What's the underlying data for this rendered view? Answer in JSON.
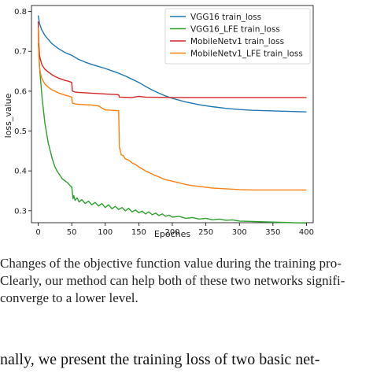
{
  "chart_data": {
    "type": "line",
    "xlabel": "Epoches",
    "ylabel": "loss_value",
    "xlim": [
      -10,
      410
    ],
    "ylim": [
      0.27,
      0.815
    ],
    "xticks": [
      0,
      50,
      100,
      150,
      200,
      250,
      300,
      350,
      400
    ],
    "yticks": [
      0.3,
      0.4,
      0.5,
      0.6,
      0.7,
      0.8
    ],
    "legend_position": "top-right",
    "grid": false,
    "series": [
      {
        "name": "VGG16 train_loss",
        "color": "#1f77b4",
        "points": [
          [
            0,
            0.79
          ],
          [
            2,
            0.77
          ],
          [
            5,
            0.755
          ],
          [
            10,
            0.74
          ],
          [
            15,
            0.73
          ],
          [
            20,
            0.72
          ],
          [
            30,
            0.707
          ],
          [
            40,
            0.697
          ],
          [
            50,
            0.69
          ],
          [
            60,
            0.68
          ],
          [
            70,
            0.673
          ],
          [
            80,
            0.667
          ],
          [
            90,
            0.662
          ],
          [
            100,
            0.657
          ],
          [
            110,
            0.651
          ],
          [
            120,
            0.645
          ],
          [
            130,
            0.638
          ],
          [
            140,
            0.63
          ],
          [
            150,
            0.622
          ],
          [
            160,
            0.612
          ],
          [
            170,
            0.603
          ],
          [
            180,
            0.595
          ],
          [
            190,
            0.588
          ],
          [
            200,
            0.582
          ],
          [
            220,
            0.573
          ],
          [
            240,
            0.566
          ],
          [
            260,
            0.561
          ],
          [
            280,
            0.557
          ],
          [
            300,
            0.554
          ],
          [
            320,
            0.552
          ],
          [
            340,
            0.551
          ],
          [
            360,
            0.55
          ],
          [
            380,
            0.549
          ],
          [
            400,
            0.548
          ]
        ]
      },
      {
        "name": "VGG16_LFE train_loss",
        "color": "#2ca02c",
        "points": [
          [
            0,
            0.72
          ],
          [
            1,
            0.7
          ],
          [
            2,
            0.66
          ],
          [
            4,
            0.62
          ],
          [
            6,
            0.58
          ],
          [
            8,
            0.55
          ],
          [
            10,
            0.52
          ],
          [
            12,
            0.5
          ],
          [
            15,
            0.47
          ],
          [
            18,
            0.45
          ],
          [
            21,
            0.43
          ],
          [
            25,
            0.41
          ],
          [
            28,
            0.4
          ],
          [
            32,
            0.39
          ],
          [
            36,
            0.38
          ],
          [
            40,
            0.375
          ],
          [
            44,
            0.37
          ],
          [
            48,
            0.362
          ],
          [
            50,
            0.36
          ],
          [
            51,
            0.345
          ],
          [
            52,
            0.33
          ],
          [
            53,
            0.338
          ],
          [
            55,
            0.326
          ],
          [
            58,
            0.332
          ],
          [
            61,
            0.322
          ],
          [
            65,
            0.328
          ],
          [
            70,
            0.318
          ],
          [
            75,
            0.324
          ],
          [
            80,
            0.315
          ],
          [
            85,
            0.321
          ],
          [
            90,
            0.312
          ],
          [
            95,
            0.318
          ],
          [
            100,
            0.308
          ],
          [
            105,
            0.315
          ],
          [
            110,
            0.305
          ],
          [
            115,
            0.311
          ],
          [
            120,
            0.303
          ],
          [
            125,
            0.308
          ],
          [
            130,
            0.3
          ],
          [
            135,
            0.306
          ],
          [
            140,
            0.297
          ],
          [
            145,
            0.302
          ],
          [
            150,
            0.295
          ],
          [
            155,
            0.299
          ],
          [
            160,
            0.292
          ],
          [
            165,
            0.297
          ],
          [
            170,
            0.29
          ],
          [
            175,
            0.294
          ],
          [
            180,
            0.288
          ],
          [
            185,
            0.292
          ],
          [
            190,
            0.286
          ],
          [
            195,
            0.289
          ],
          [
            200,
            0.284
          ],
          [
            210,
            0.286
          ],
          [
            220,
            0.281
          ],
          [
            230,
            0.283
          ],
          [
            240,
            0.279
          ],
          [
            250,
            0.281
          ],
          [
            260,
            0.277
          ],
          [
            270,
            0.279
          ],
          [
            280,
            0.276
          ],
          [
            290,
            0.277
          ],
          [
            300,
            0.274
          ],
          [
            320,
            0.273
          ],
          [
            340,
            0.272
          ],
          [
            360,
            0.271
          ],
          [
            380,
            0.27
          ],
          [
            400,
            0.269
          ]
        ]
      },
      {
        "name": "MobileNetv1 train_loss",
        "color": "#d62728",
        "points": [
          [
            0,
            0.775
          ],
          [
            1,
            0.72
          ],
          [
            2,
            0.69
          ],
          [
            4,
            0.675
          ],
          [
            6,
            0.665
          ],
          [
            10,
            0.655
          ],
          [
            15,
            0.648
          ],
          [
            20,
            0.642
          ],
          [
            25,
            0.637
          ],
          [
            30,
            0.633
          ],
          [
            35,
            0.63
          ],
          [
            40,
            0.627
          ],
          [
            45,
            0.625
          ],
          [
            50,
            0.622
          ],
          [
            51,
            0.6
          ],
          [
            55,
            0.598
          ],
          [
            60,
            0.597
          ],
          [
            70,
            0.596
          ],
          [
            80,
            0.595
          ],
          [
            90,
            0.594
          ],
          [
            100,
            0.593
          ],
          [
            110,
            0.592
          ],
          [
            120,
            0.591
          ],
          [
            121,
            0.585
          ],
          [
            140,
            0.584
          ],
          [
            150,
            0.587
          ],
          [
            160,
            0.585
          ],
          [
            200,
            0.584
          ],
          [
            300,
            0.584
          ],
          [
            400,
            0.584
          ]
        ]
      },
      {
        "name": "MobileNetv1_LFE train_loss",
        "color": "#ff7f0e",
        "points": [
          [
            0,
            0.76
          ],
          [
            1,
            0.69
          ],
          [
            2,
            0.66
          ],
          [
            4,
            0.64
          ],
          [
            6,
            0.63
          ],
          [
            10,
            0.618
          ],
          [
            15,
            0.61
          ],
          [
            20,
            0.604
          ],
          [
            25,
            0.6
          ],
          [
            30,
            0.596
          ],
          [
            35,
            0.593
          ],
          [
            40,
            0.59
          ],
          [
            45,
            0.588
          ],
          [
            50,
            0.585
          ],
          [
            51,
            0.57
          ],
          [
            55,
            0.568
          ],
          [
            60,
            0.567
          ],
          [
            70,
            0.566
          ],
          [
            80,
            0.565
          ],
          [
            90,
            0.563
          ],
          [
            100,
            0.553
          ],
          [
            110,
            0.552
          ],
          [
            120,
            0.551
          ],
          [
            121,
            0.46
          ],
          [
            124,
            0.44
          ],
          [
            127,
            0.438
          ],
          [
            130,
            0.43
          ],
          [
            135,
            0.427
          ],
          [
            140,
            0.42
          ],
          [
            145,
            0.416
          ],
          [
            150,
            0.41
          ],
          [
            155,
            0.405
          ],
          [
            160,
            0.4
          ],
          [
            165,
            0.396
          ],
          [
            170,
            0.392
          ],
          [
            175,
            0.388
          ],
          [
            180,
            0.385
          ],
          [
            185,
            0.381
          ],
          [
            190,
            0.378
          ],
          [
            195,
            0.376
          ],
          [
            200,
            0.374
          ],
          [
            210,
            0.37
          ],
          [
            220,
            0.366
          ],
          [
            230,
            0.363
          ],
          [
            240,
            0.361
          ],
          [
            250,
            0.359
          ],
          [
            260,
            0.357
          ],
          [
            270,
            0.356
          ],
          [
            280,
            0.355
          ],
          [
            290,
            0.354
          ],
          [
            300,
            0.353
          ],
          [
            320,
            0.352
          ],
          [
            340,
            0.352
          ],
          [
            360,
            0.352
          ],
          [
            380,
            0.352
          ],
          [
            400,
            0.352
          ]
        ]
      }
    ]
  },
  "caption": {
    "line1": "Changes of the objective function value during the training pro-",
    "line2": "Clearly, our method can help both of these two networks signifi-",
    "line3": "converge to a lower level."
  },
  "body_text": "nally, we present the training loss of two basic net-"
}
